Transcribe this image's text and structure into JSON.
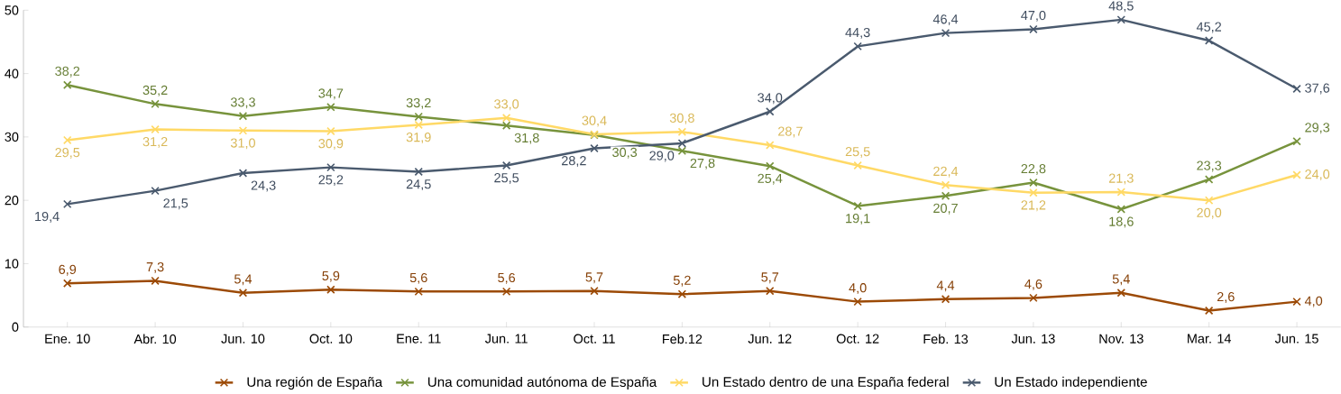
{
  "chart_data": {
    "type": "line",
    "categories": [
      "Ene. 10",
      "Abr. 10",
      "Jun. 10",
      "Oct. 10",
      "Ene. 11",
      "Jun. 11",
      "Oct. 11",
      "Feb.12",
      "Jun. 12",
      "Oct. 12",
      "Feb. 13",
      "Jun. 13",
      "Nov. 13",
      "Mar. 14",
      "Jun. 15"
    ],
    "series": [
      {
        "name": "Una región de España",
        "color": "#9c4a06",
        "marker": "cross",
        "values": [
          6.9,
          7.3,
          5.4,
          5.9,
          5.6,
          5.6,
          5.7,
          5.2,
          5.7,
          4.0,
          4.4,
          4.6,
          5.4,
          2.6,
          4.0
        ],
        "value_labels": [
          "6,9",
          "7,3",
          "5,4",
          "5,9",
          "5,6",
          "5,6",
          "5,7",
          "5,2",
          "5,7",
          "4,0",
          "4,4",
          "4,6",
          "5,4",
          "2,6",
          "4,0"
        ]
      },
      {
        "name": "Una comunidad autónoma de España",
        "color": "#77933c",
        "marker": "cross",
        "values": [
          38.2,
          35.2,
          33.3,
          34.7,
          33.2,
          31.8,
          30.3,
          27.8,
          25.4,
          19.1,
          20.7,
          22.8,
          18.6,
          23.3,
          29.3
        ],
        "value_labels": [
          "38,2",
          "35,2",
          "33,3",
          "34,7",
          "33,2",
          "31,8",
          "30,3",
          "27,8",
          "25,4",
          "19,1",
          "20,7",
          "22,8",
          "18,6",
          "23,3",
          "29,3"
        ]
      },
      {
        "name": "Un Estado dentro de una España federal",
        "color": "#ffd966",
        "marker": "cross",
        "values": [
          29.5,
          31.2,
          31.0,
          30.9,
          31.9,
          33.0,
          30.4,
          30.8,
          28.7,
          25.5,
          22.4,
          21.2,
          21.3,
          20.0,
          24.0
        ],
        "value_labels": [
          "29,5",
          "31,2",
          "31,0",
          "30,9",
          "31,9",
          "33,0",
          "30,4",
          "30,8",
          "28,7",
          "25,5",
          "22,4",
          "21,2",
          "21,3",
          "20,0",
          "24,0"
        ]
      },
      {
        "name": "Un Estado independiente",
        "color": "#4a5a6e",
        "marker": "cross",
        "values": [
          19.4,
          21.5,
          24.3,
          25.2,
          24.5,
          25.5,
          28.2,
          29.0,
          34.0,
          44.3,
          46.4,
          47.0,
          48.5,
          45.2,
          37.6
        ],
        "value_labels": [
          "19,4",
          "21,5",
          "24,3",
          "25,2",
          "24,5",
          "25,5",
          "28,2",
          "29,0",
          "34,0",
          "44,3",
          "46,4",
          "47,0",
          "48,5",
          "45,2",
          "37,6"
        ]
      }
    ],
    "ylim": [
      0,
      50
    ],
    "yticks": [
      0,
      10,
      20,
      30,
      40,
      50
    ],
    "legend": "bottom",
    "line_style": "solid"
  }
}
